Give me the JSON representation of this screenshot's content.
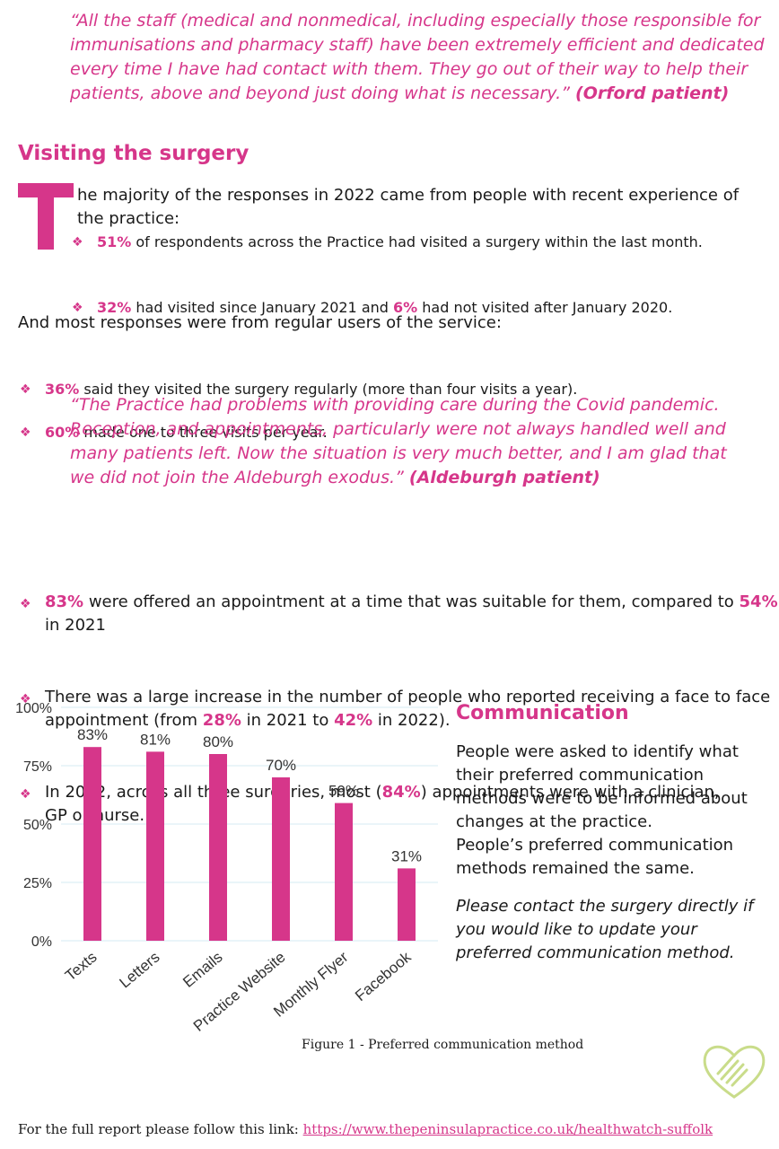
{
  "quote1": {
    "text": "“All the staff (medical and nonmedical, including especially those responsible for immunisations and pharmacy staff) have been extremely efficient and dedicated every time I have had contact with them. They go out of their way to help their patients, above and beyond just doing what is necessary.”",
    "source": "(Orford patient)"
  },
  "visiting": {
    "heading": "Visiting the surgery",
    "dropcap": "T",
    "intro": "he majority of the responses in 2022 came from people with recent experience of the practice:",
    "b1_pct": "51%",
    "b1_text": " of respondents across the Practice had visited a surgery within the last month.",
    "b2_pct1": "32%",
    "b2_text1": " had visited since January 2021 and ",
    "b2_pct2": "6%",
    "b2_text2": " had not visited after January 2020.",
    "regular_intro": "And most responses were from regular users of the service:",
    "b3_pct": "36%",
    "b3_text": " said they visited the surgery regularly (more than four visits a year).",
    "b4_pct": "60%",
    "b4_text": " made one to three visits per year."
  },
  "quote2": {
    "text": "“The Practice had problems with providing care during the Covid pandemic. Reception, and appointments, particularly were not always handled well and many patients left. Now the situation is very much better, and I am glad that we did not join the Aldeburgh exodus.”",
    "source": "(Aldeburgh patient)"
  },
  "appointments": {
    "b1_pct": "83%",
    "b1_text": " were offered an appointment at a time that was suitable for them, compared to ",
    "b1_pct2": "54%",
    "b1_text2": " in 2021",
    "b2_text": "There was a large increase in the number of people who reported receiving a face to face appointment (from ",
    "b2_pct1": "28%",
    "b2_mid": " in 2021 to ",
    "b2_pct2": "42%",
    "b2_end": " in 2022).",
    "b3_text": "In 2022, across all three surgeries, most (",
    "b3_pct": "84%",
    "b3_end": ") appointments were with a clinician, GP or nurse."
  },
  "chart_data": {
    "type": "bar",
    "categories": [
      "Texts",
      "Letters",
      "Emails",
      "Practice Website",
      "Monthly Flyer",
      "Facebook"
    ],
    "values": [
      83,
      81,
      80,
      70,
      59,
      31
    ],
    "data_labels": [
      "83%",
      "81%",
      "80%",
      "70%",
      "59%",
      "31%"
    ],
    "yticks": [
      "0%",
      "25%",
      "50%",
      "75%",
      "100%"
    ],
    "ylim": [
      0,
      100
    ],
    "grid": true,
    "bar_color": "#d6368a",
    "caption": "Figure 1 - Preferred communication method"
  },
  "communication": {
    "heading": "Communication",
    "p1": "People were asked to identify what their preferred communication methods were to be informed about changes at the practice.",
    "p2": "People’s preferred communication methods remained the same.",
    "p3": "Please contact the surgery directly if you would like to update your preferred communication method."
  },
  "footer": {
    "text": "For the full report please follow this link: ",
    "link": "https://www.thepeninsulapractice.co.uk/healthwatch-suffolk"
  },
  "colors": {
    "accent": "#d6368a",
    "logo": "#c9dc8a"
  },
  "icons": {
    "bullet": "diamond-bullet-icon",
    "logo": "heart-hands-logo-icon"
  }
}
